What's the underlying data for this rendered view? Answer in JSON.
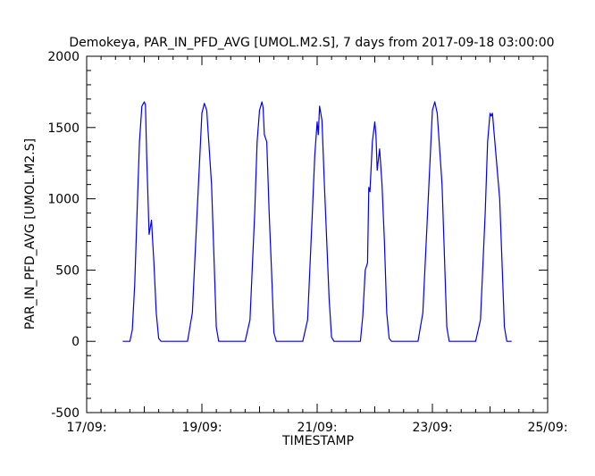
{
  "chart_data": {
    "type": "line",
    "title": "Demokeya, PAR_IN_PFD_AVG [UMOL.M2.S], 7 days from  2017-09-18 03:00:00",
    "xlabel": "TIMESTAMP",
    "ylabel": "PAR_IN_PFD_AVG [UMOL.M2.S]",
    "xlim": [
      "2017-09-17 00:00",
      "2017-09-25 00:00"
    ],
    "ylim": [
      -500,
      2000
    ],
    "x_ticks": [
      "17/09:",
      "19/09:",
      "21/09:",
      "23/09:",
      "25/09:"
    ],
    "y_ticks": [
      "-500",
      "0",
      "500",
      "1000",
      "1500",
      "2000"
    ],
    "grid": false,
    "line_color": "#0000ee",
    "series": [
      {
        "x": [
          "2017-09-17 15:00",
          "2017-09-17 18:00",
          "2017-09-17 19:00",
          "2017-09-17 20:00",
          "2017-09-17 21:00",
          "2017-09-17 22:00",
          "2017-09-17 23:00",
          "2017-09-18 00:00",
          "2017-09-18 00:30",
          "2017-09-18 01:00",
          "2017-09-18 02:00",
          "2017-09-18 03:00",
          "2017-09-18 03:30",
          "2017-09-18 04:00",
          "2017-09-18 05:00",
          "2017-09-18 06:00",
          "2017-09-18 07:00",
          "2017-09-18 18:00",
          "2017-09-18 20:00",
          "2017-09-18 22:00",
          "2017-09-19 00:00",
          "2017-09-19 01:00",
          "2017-09-19 02:00",
          "2017-09-19 04:00",
          "2017-09-19 06:00",
          "2017-09-19 07:00",
          "2017-09-19 18:00",
          "2017-09-19 20:00",
          "2017-09-19 22:00",
          "2017-09-19 23:00",
          "2017-09-20 00:00",
          "2017-09-20 01:00",
          "2017-09-20 01:30",
          "2017-09-20 02:00",
          "2017-09-20 03:00",
          "2017-09-20 04:00",
          "2017-09-20 05:00",
          "2017-09-20 06:00",
          "2017-09-20 07:00",
          "2017-09-20 18:00",
          "2017-09-20 20:00",
          "2017-09-20 22:00",
          "2017-09-20 23:00",
          "2017-09-21 00:00",
          "2017-09-21 00:30",
          "2017-09-21 01:00",
          "2017-09-21 02:00",
          "2017-09-21 03:00",
          "2017-09-21 05:00",
          "2017-09-21 06:00",
          "2017-09-21 07:00",
          "2017-09-21 18:00",
          "2017-09-21 19:00",
          "2017-09-21 20:00",
          "2017-09-21 21:00",
          "2017-09-21 21:30",
          "2017-09-21 22:00",
          "2017-09-21 23:00",
          "2017-09-22 00:00",
          "2017-09-22 00:30",
          "2017-09-22 01:00",
          "2017-09-22 02:00",
          "2017-09-22 03:00",
          "2017-09-22 04:00",
          "2017-09-22 05:00",
          "2017-09-22 06:00",
          "2017-09-22 07:00",
          "2017-09-22 18:00",
          "2017-09-22 20:00",
          "2017-09-22 22:00",
          "2017-09-23 00:00",
          "2017-09-23 01:00",
          "2017-09-23 02:00",
          "2017-09-23 04:00",
          "2017-09-23 06:00",
          "2017-09-23 07:00",
          "2017-09-23 18:00",
          "2017-09-23 20:00",
          "2017-09-23 22:00",
          "2017-09-23 23:00",
          "2017-09-24 00:00",
          "2017-09-24 00:30",
          "2017-09-24 01:00",
          "2017-09-24 02:00",
          "2017-09-24 04:00",
          "2017-09-24 06:00",
          "2017-09-24 07:00",
          "2017-09-24 09:00"
        ],
        "y": [
          0,
          0,
          80,
          400,
          900,
          1400,
          1650,
          1680,
          1660,
          1300,
          750,
          850,
          700,
          550,
          200,
          20,
          0,
          0,
          200,
          900,
          1600,
          1670,
          1620,
          1100,
          100,
          0,
          0,
          150,
          900,
          1400,
          1620,
          1680,
          1640,
          1450,
          1400,
          900,
          500,
          60,
          0,
          0,
          150,
          900,
          1300,
          1540,
          1450,
          1650,
          1550,
          1100,
          300,
          30,
          0,
          0,
          180,
          500,
          550,
          1080,
          1050,
          1400,
          1540,
          1450,
          1200,
          1350,
          1100,
          700,
          200,
          20,
          0,
          0,
          200,
          900,
          1620,
          1680,
          1600,
          1100,
          100,
          0,
          0,
          150,
          900,
          1400,
          1600,
          1580,
          1600,
          1400,
          1000,
          100,
          0,
          0
        ]
      }
    ]
  }
}
